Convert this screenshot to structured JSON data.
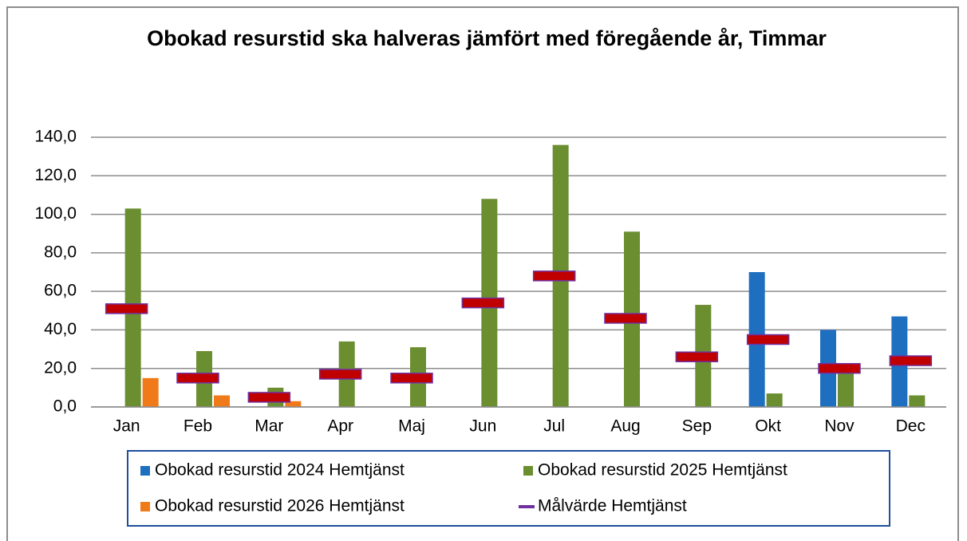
{
  "chart_data": {
    "type": "bar",
    "title": "Obokad resurstid ska halveras jämfört med föregående år, Timmar",
    "categories": [
      "Jan",
      "Feb",
      "Mar",
      "Apr",
      "Maj",
      "Jun",
      "Jul",
      "Aug",
      "Sep",
      "Okt",
      "Nov",
      "Dec"
    ],
    "series": [
      {
        "name": "Obokad resurstid 2024 Hemtjänst",
        "color": "#1f6fc0",
        "values": [
          null,
          null,
          null,
          null,
          null,
          null,
          null,
          null,
          null,
          70,
          40,
          47
        ]
      },
      {
        "name": "Obokad resurstid 2025 Hemtjänst",
        "color": "#6b8e31",
        "values": [
          103,
          29,
          10,
          34,
          31,
          108,
          136,
          91,
          53,
          7,
          20,
          6
        ]
      },
      {
        "name": "Obokad resurstid 2026 Hemtjänst",
        "color": "#f07a1a",
        "values": [
          15,
          6,
          3,
          null,
          null,
          null,
          null,
          null,
          null,
          null,
          null,
          null
        ]
      },
      {
        "name": "Målvärde Hemtjänst",
        "type": "line",
        "marker": "dash",
        "color": "#c00000",
        "edgecolor": "#7030a0",
        "values": [
          51,
          15,
          5,
          17,
          15,
          54,
          68,
          46,
          26,
          35,
          20,
          24
        ]
      }
    ],
    "ylim": [
      0,
      140
    ],
    "yticks": [
      {
        "value": 0,
        "label": "0,0"
      },
      {
        "value": 20,
        "label": "20,0"
      },
      {
        "value": 40,
        "label": "40,0"
      },
      {
        "value": 60,
        "label": "60,0"
      },
      {
        "value": 80,
        "label": "80,0"
      },
      {
        "value": 100,
        "label": "100,0"
      },
      {
        "value": 120,
        "label": "120,0"
      },
      {
        "value": 140,
        "label": "140,0"
      }
    ],
    "grid": true,
    "legend": "bottom"
  }
}
